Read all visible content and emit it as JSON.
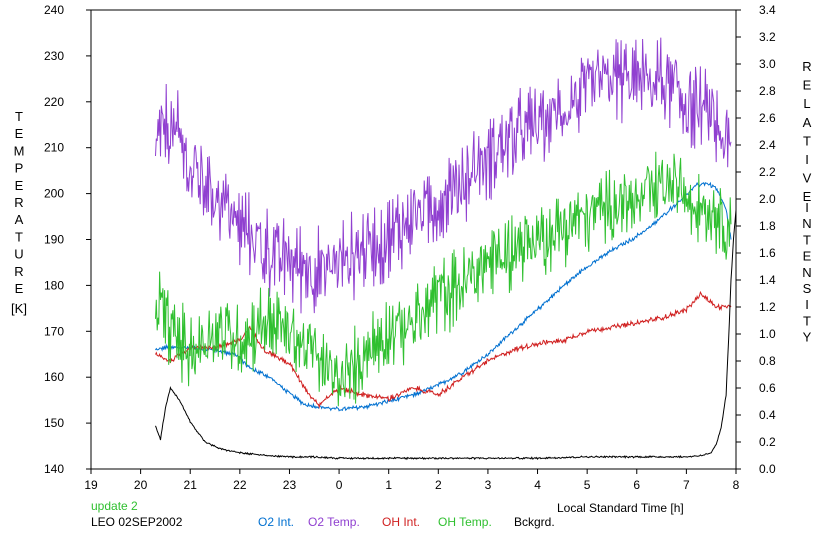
{
  "chart_data": {
    "type": "line",
    "xlabel": "Local Standard Time [h]",
    "x_ticks": [
      "19",
      "20",
      "21",
      "22",
      "23",
      "0",
      "1",
      "2",
      "3",
      "4",
      "5",
      "6",
      "7",
      "8"
    ],
    "xlim": [
      19,
      32
    ],
    "left_axis": {
      "label_letters": [
        "T",
        "E",
        "M",
        "P",
        "E",
        "R",
        "A",
        "T",
        "U",
        "R",
        "E"
      ],
      "unit": "[K]",
      "ylim": [
        140,
        240
      ],
      "ticks": [
        "140",
        "150",
        "160",
        "170",
        "180",
        "190",
        "200",
        "210",
        "220",
        "230",
        "240"
      ]
    },
    "right_axis": {
      "label_word1": [
        "R",
        "E",
        "L",
        "A",
        "T",
        "I",
        "V",
        "E"
      ],
      "label_word2": [
        "I",
        "N",
        "T",
        "E",
        "N",
        "S",
        "I",
        "T",
        "Y"
      ],
      "ylim": [
        0,
        3.4
      ],
      "ticks": [
        "0.0",
        "0.2",
        "0.4",
        "0.6",
        "0.8",
        "1.0",
        "1.2",
        "1.4",
        "1.6",
        "1.8",
        "2.0",
        "2.2",
        "2.4",
        "2.6",
        "2.8",
        "3.0",
        "3.2",
        "3.4"
      ]
    },
    "annotations": {
      "status": "update 2",
      "station": "LEO 02SEP2002"
    },
    "series": [
      {
        "name": "O2 Int.",
        "axis": "right",
        "color": "#0070d0",
        "noise": 0.015,
        "x": [
          20.3,
          20.5,
          21.0,
          21.5,
          21.9,
          22.2,
          22.6,
          23.0,
          23.3,
          23.6,
          24.0,
          24.5,
          25.0,
          25.5,
          26.0,
          26.5,
          27.0,
          27.5,
          28.0,
          28.5,
          29.0,
          29.5,
          29.9,
          30.3,
          30.6,
          30.9,
          31.2,
          31.4,
          31.6,
          31.8,
          31.9
        ],
        "y": [
          0.88,
          0.9,
          0.9,
          0.88,
          0.85,
          0.75,
          0.68,
          0.56,
          0.48,
          0.46,
          0.44,
          0.46,
          0.5,
          0.55,
          0.62,
          0.72,
          0.85,
          1.02,
          1.18,
          1.35,
          1.5,
          1.62,
          1.7,
          1.8,
          1.9,
          2.0,
          2.1,
          2.12,
          2.08,
          1.92,
          1.7
        ]
      },
      {
        "name": "O2 Temp.",
        "axis": "left",
        "color": "#9040d0",
        "noise": 8.5,
        "x": [
          20.3,
          20.5,
          20.8,
          21.0,
          21.5,
          22.0,
          22.5,
          23.0,
          23.5,
          24.0,
          24.5,
          25.0,
          25.5,
          26.0,
          26.5,
          27.0,
          27.5,
          28.0,
          28.5,
          29.0,
          29.5,
          29.9,
          30.2,
          30.5,
          30.8,
          31.0,
          31.3,
          31.6,
          31.9
        ],
        "y": [
          210,
          215,
          212,
          205,
          200,
          193,
          188,
          185,
          183,
          185,
          188,
          190,
          195,
          198,
          203,
          208,
          212,
          215,
          218,
          222,
          225,
          225,
          225,
          224,
          222,
          220,
          218,
          215,
          208
        ]
      },
      {
        "name": "OH Int.",
        "axis": "right",
        "color": "#d02020",
        "noise": 0.018,
        "x": [
          20.3,
          20.6,
          21.0,
          21.5,
          22.0,
          22.2,
          22.5,
          23.0,
          23.4,
          23.6,
          24.0,
          24.5,
          25.0,
          25.5,
          26.0,
          26.5,
          27.0,
          27.5,
          28.0,
          28.5,
          29.0,
          29.5,
          30.0,
          30.5,
          31.0,
          31.3,
          31.6,
          31.9
        ],
        "y": [
          0.85,
          0.8,
          0.9,
          0.9,
          0.95,
          1.05,
          0.88,
          0.78,
          0.55,
          0.48,
          0.6,
          0.55,
          0.52,
          0.6,
          0.55,
          0.68,
          0.8,
          0.88,
          0.93,
          0.95,
          1.02,
          1.05,
          1.08,
          1.12,
          1.18,
          1.3,
          1.2,
          1.2
        ]
      },
      {
        "name": "OH Temp.",
        "axis": "left",
        "color": "#30c030",
        "noise": 7.5,
        "x": [
          20.3,
          20.5,
          20.8,
          21.0,
          21.5,
          22.0,
          22.5,
          23.0,
          23.5,
          24.0,
          24.5,
          25.0,
          25.5,
          26.0,
          26.5,
          27.0,
          27.5,
          28.0,
          28.5,
          29.0,
          29.5,
          30.0,
          30.3,
          30.6,
          31.0,
          31.3,
          31.6,
          31.9
        ],
        "y": [
          178,
          172,
          168,
          165,
          170,
          168,
          172,
          170,
          165,
          158,
          165,
          170,
          172,
          178,
          180,
          185,
          188,
          190,
          193,
          195,
          198,
          198,
          200,
          202,
          200,
          198,
          196,
          192
        ]
      },
      {
        "name": "Bckgrd.",
        "axis": "right",
        "color": "#000000",
        "noise": 0.006,
        "x": [
          20.3,
          20.4,
          20.5,
          20.6,
          20.8,
          21.0,
          21.3,
          21.6,
          22.0,
          22.5,
          23.0,
          23.5,
          24.0,
          25.0,
          26.0,
          27.0,
          28.0,
          29.0,
          30.0,
          31.0,
          31.3,
          31.5,
          31.6,
          31.7,
          31.8,
          31.85,
          31.9,
          31.95,
          32.0
        ],
        "y": [
          0.32,
          0.22,
          0.45,
          0.6,
          0.5,
          0.35,
          0.2,
          0.15,
          0.12,
          0.1,
          0.09,
          0.09,
          0.08,
          0.08,
          0.08,
          0.08,
          0.08,
          0.09,
          0.09,
          0.09,
          0.1,
          0.12,
          0.18,
          0.3,
          0.55,
          0.95,
          1.4,
          1.7,
          1.92
        ]
      }
    ]
  }
}
